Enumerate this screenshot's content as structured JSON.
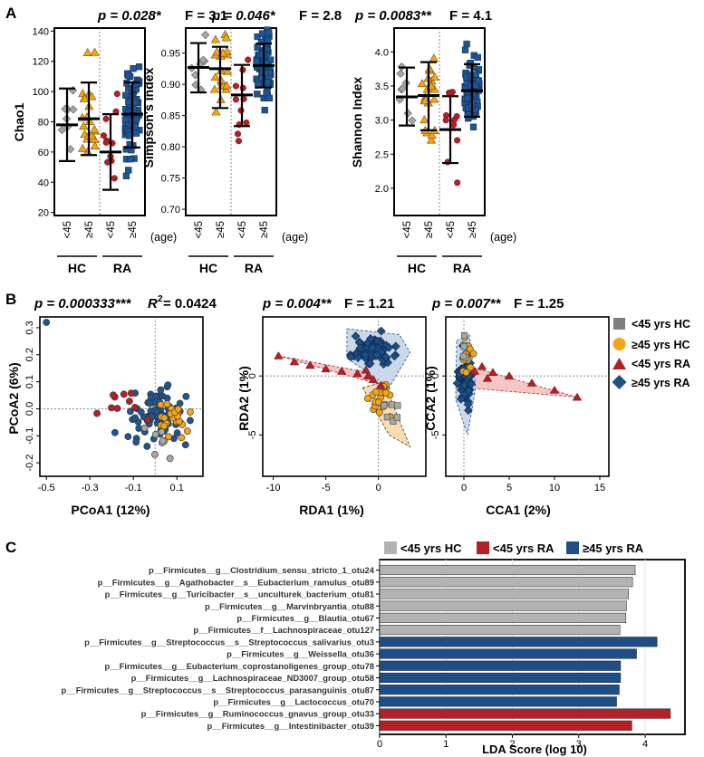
{
  "colors": {
    "hc_lt45": "#9a9a9a",
    "hc_ge45": "#f2a516",
    "ra_lt45": "#b52026",
    "ra_ge45": "#1f5592",
    "ellipse_ra_lt45": "#f4c7c4",
    "ellipse_ra_ge45": "#c9d9ea",
    "ellipse_hc": "#f6ddb0"
  },
  "panels": {
    "A": "A",
    "B": "B",
    "C": "C"
  },
  "chart_data": [
    {
      "id": "chao1",
      "type": "scatter",
      "title_p": "p = 0.028*",
      "title_f": "F = 3.1",
      "ylabel": "Chao1",
      "ylim": [
        18,
        142
      ],
      "yticks": [
        20,
        40,
        60,
        80,
        100,
        120,
        140
      ],
      "tick_labels": [
        "<45",
        "≥45",
        "<45",
        "≥45"
      ],
      "age_label": "(age)",
      "groups": [
        "HC",
        "RA"
      ],
      "summary": [
        {
          "mean": 78,
          "lo": 54,
          "hi": 102
        },
        {
          "mean": 82,
          "lo": 58,
          "hi": 106
        },
        {
          "mean": 60,
          "lo": 35,
          "hi": 85
        },
        {
          "mean": 85,
          "lo": 63,
          "hi": 106
        }
      ]
    },
    {
      "id": "simpson",
      "type": "scatter",
      "title_p": "p = 0.046*",
      "title_f": "F = 2.8",
      "ylabel": "Simpson's Index",
      "ylim": [
        0.69,
        0.99
      ],
      "yticks": [
        0.7,
        0.75,
        0.8,
        0.85,
        0.9,
        0.95
      ],
      "tick_labels": [
        "<45",
        "≥45",
        "<45",
        "≥45"
      ],
      "age_label": "(age)",
      "groups": [
        "HC",
        "RA"
      ],
      "summary": [
        {
          "mean": 0.927,
          "lo": 0.887,
          "hi": 0.966
        },
        {
          "mean": 0.925,
          "lo": 0.862,
          "hi": 0.96
        },
        {
          "mean": 0.883,
          "lo": 0.833,
          "hi": 0.931
        },
        {
          "mean": 0.93,
          "lo": 0.895,
          "hi": 0.965
        }
      ]
    },
    {
      "id": "shannon",
      "type": "scatter",
      "title_p": "p = 0.0083**",
      "title_f": "F = 4.1",
      "ylabel": "Shannon Index",
      "ylim": [
        1.6,
        4.35
      ],
      "yticks": [
        2.0,
        2.5,
        3.0,
        3.5,
        4.0
      ],
      "tick_labels": [
        "<45",
        "≥45",
        "<45",
        "≥45"
      ],
      "age_label": "(age)",
      "groups": [
        "HC",
        "RA"
      ],
      "summary": [
        {
          "mean": 3.34,
          "lo": 2.92,
          "hi": 3.77
        },
        {
          "mean": 3.36,
          "lo": 2.85,
          "hi": 3.85
        },
        {
          "mean": 2.86,
          "lo": 2.37,
          "hi": 3.35
        },
        {
          "mean": 3.43,
          "lo": 3.05,
          "hi": 3.82
        }
      ]
    },
    {
      "id": "pcoa",
      "type": "scatter",
      "title_p": "p = 0.000333***",
      "title_r2": "R",
      "title_r2_sup": "2",
      "title_r2_val": " = 0.0424",
      "xlabel": "PCoA1 (12%)",
      "ylabel": "PCoA2 (6%)",
      "xlim": [
        -0.53,
        0.22
      ],
      "ylim": [
        -0.25,
        0.34
      ],
      "xticks": [
        -0.5,
        -0.3,
        -0.1,
        0.1
      ],
      "xtick_labels": [
        "-0.5",
        "-0.3",
        "-0.1",
        "0.1"
      ],
      "yticks": [
        -0.2,
        -0.1,
        0.0,
        0.1,
        0.2,
        0.3
      ],
      "ytick_labels": [
        "-0.2",
        "-0.1",
        "0.0",
        "0.1",
        "0.2",
        "0.3"
      ]
    },
    {
      "id": "rda",
      "type": "scatter",
      "title_p": "p = 0.004**",
      "title_f": "F = 1.21",
      "xlabel": "RDA1 (1%)",
      "ylabel": "RDA2 (1%)",
      "xlim": [
        -11,
        4.5
      ],
      "ylim": [
        -8.5,
        5
      ],
      "xticks": [
        -10,
        -5,
        0
      ],
      "xtick_labels": [
        "-10",
        "-5",
        "0"
      ],
      "yticks": [
        -5,
        0
      ],
      "ytick_labels": [
        "-5",
        "0"
      ]
    },
    {
      "id": "cca",
      "type": "scatter",
      "title_p": "p = 0.007**",
      "title_f": "F = 1.25",
      "xlabel": "CCA1 (2%)",
      "ylabel": "CCA2 (1%)",
      "xlim": [
        -2,
        16
      ],
      "ylim": [
        -8.5,
        5
      ],
      "xticks": [
        0,
        5,
        10,
        15
      ],
      "xtick_labels": [
        "0",
        "5",
        "10",
        "15"
      ],
      "yticks": [
        -5,
        0
      ],
      "ytick_labels": [
        "-5",
        "0"
      ]
    },
    {
      "id": "lda",
      "type": "bar",
      "xlabel": "LDA Score (log 10)",
      "xlim": [
        0,
        4.6
      ],
      "xticks": [
        0,
        1,
        2,
        3,
        4
      ],
      "xtick_labels": [
        "0",
        "1",
        "2",
        "3",
        "4"
      ],
      "legend": [
        "<45 yrs HC",
        "<45 yrs RA",
        "≥45 yrs RA"
      ],
      "bars": [
        {
          "label": "p__Firmicutes__g__Clostridium_sensu_stricto_1_otu24",
          "value": 3.85,
          "group": 0
        },
        {
          "label": "p__Firmicutes__g__Agathobacter__s__Eubacterium_ramulus_otu89",
          "value": 3.81,
          "group": 0
        },
        {
          "label": "p__Firmicutes__g__Turicibacter__s__unculturek_bacterium_otu81",
          "value": 3.75,
          "group": 0
        },
        {
          "label": "p__Firmicutes__g__Marvinbryantia_otu88",
          "value": 3.72,
          "group": 0
        },
        {
          "label": "p__Firmicutes__g__Blautia_otu67",
          "value": 3.71,
          "group": 0
        },
        {
          "label": "p__Firmicutes__f__Lachnospiraceae_otu127",
          "value": 3.62,
          "group": 0
        },
        {
          "label": "p__Firmicutes__g__Streptococcus__s__Streptococcus_salivarius_otu3",
          "value": 4.18,
          "group": 2
        },
        {
          "label": "p__Firmicutes__g__Weissella_otu36",
          "value": 3.87,
          "group": 2
        },
        {
          "label": "p__Firmicutes__g__Eubacterium_coprostanoligenes_group_otu78",
          "value": 3.63,
          "group": 2
        },
        {
          "label": "p__Firmicutes__g__Lachnospiraceae_ND3007_group_otu58",
          "value": 3.63,
          "group": 2
        },
        {
          "label": "p__Firmicutes__g__Streptococcus__s__Streptococcus_parasanguinis_otu87",
          "value": 3.61,
          "group": 2
        },
        {
          "label": "p__Firmicutes__g__Lactococcus_otu70",
          "value": 3.57,
          "group": 2
        },
        {
          "label": "p__Firmicutes__g__Ruminococcus_gnavus_group_otu33",
          "value": 4.38,
          "group": 1
        },
        {
          "label": "p__Firmicutes__g__Intestinibacter_otu39",
          "value": 3.8,
          "group": 1
        }
      ]
    }
  ],
  "legend_b": [
    "<45 yrs HC",
    "≥45 yrs HC",
    "<45 yrs RA",
    "≥45 yrs RA"
  ]
}
